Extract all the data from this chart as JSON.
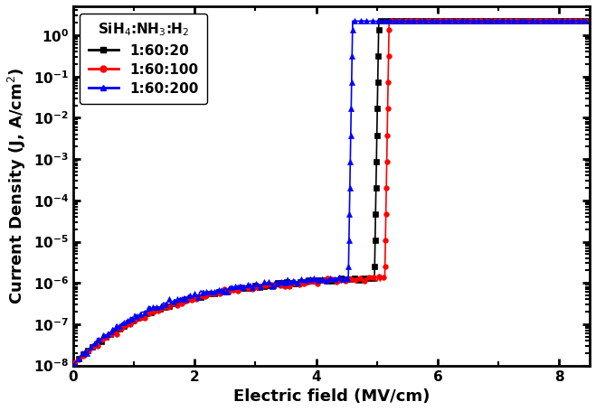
{
  "xlabel": "Electric field (MV/cm)",
  "ylabel": "Current Density (J, A/cm²)",
  "xlim": [
    0,
    8.5
  ],
  "ylim_log": [
    -8,
    0.7
  ],
  "legend_title": "SiH$_4$:NH$_3$:H$_2$",
  "series": [
    {
      "label": "1:60:20",
      "color": "#000000",
      "marker": "s",
      "bd_x": 4.98,
      "saturation": 2.2,
      "noise_amp": 0.08
    },
    {
      "label": "1:60:100",
      "color": "#ff0000",
      "marker": "o",
      "bd_x": 5.15,
      "saturation": 2.2,
      "noise_amp": 0.1
    },
    {
      "label": "1:60:200",
      "color": "#0000ff",
      "marker": "^",
      "bd_x": 4.55,
      "saturation": 2.2,
      "noise_amp": 0.12
    }
  ],
  "figsize": [
    6.59,
    4.55
  ],
  "dpi": 100
}
